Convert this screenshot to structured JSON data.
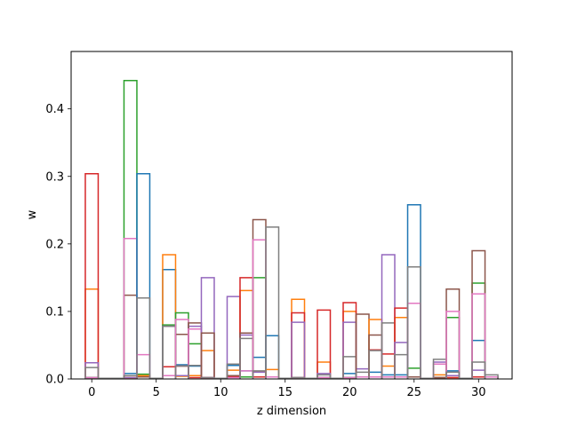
{
  "chart_data": {
    "type": "bar",
    "style": "step-histogram",
    "xlabel": "z dimension",
    "ylabel": "w",
    "xlim": [
      -1.6,
      32.6
    ],
    "ylim": [
      0,
      0.485
    ],
    "xticks": [
      0,
      5,
      10,
      15,
      20,
      25,
      30
    ],
    "yticks": [
      0.0,
      0.1,
      0.2,
      0.3,
      0.4
    ],
    "ytick_labels": [
      "0.0",
      "0.1",
      "0.2",
      "0.3",
      "0.4"
    ],
    "grid": false,
    "colors": [
      "#1f77b4",
      "#ff7f0e",
      "#2ca02c",
      "#d62728",
      "#9467bd",
      "#8c564b",
      "#e377c2",
      "#7f7f7f"
    ],
    "bins": [
      {
        "x": 0,
        "values": [
          0.002,
          0.133,
          0.002,
          0.304,
          0.024,
          0.002,
          0.002,
          0.017
        ]
      },
      {
        "x": 1,
        "values": [
          0.001,
          0.001,
          0.001,
          0.001,
          0.001,
          0.001,
          0.001,
          0.001
        ]
      },
      {
        "x": 2,
        "values": [
          0.001,
          0.001,
          0.001,
          0.001,
          0.001,
          0.001,
          0.001,
          0.001
        ]
      },
      {
        "x": 3,
        "values": [
          0.008,
          0.002,
          0.442,
          0.002,
          0.002,
          0.124,
          0.208,
          0.005
        ]
      },
      {
        "x": 4,
        "values": [
          0.304,
          0.005,
          0.007,
          0.003,
          0.003,
          0.003,
          0.036,
          0.12
        ]
      },
      {
        "x": 5,
        "values": [
          0.001,
          0.001,
          0.001,
          0.001,
          0.001,
          0.001,
          0.001,
          0.001
        ]
      },
      {
        "x": 6,
        "values": [
          0.162,
          0.184,
          0.08,
          0.018,
          0.078,
          0.005,
          0.005,
          0.078
        ]
      },
      {
        "x": 7,
        "values": [
          0.021,
          0.004,
          0.098,
          0.019,
          0.005,
          0.066,
          0.088,
          0.019
        ]
      },
      {
        "x": 8,
        "values": [
          0.019,
          0.005,
          0.052,
          0.002,
          0.078,
          0.083,
          0.074,
          0.02
        ]
      },
      {
        "x": 9,
        "values": [
          0.002,
          0.042,
          0.002,
          0.002,
          0.15,
          0.068,
          0.002,
          0.002
        ]
      },
      {
        "x": 10,
        "values": [
          0.001,
          0.001,
          0.001,
          0.001,
          0.001,
          0.001,
          0.001,
          0.001
        ]
      },
      {
        "x": 11,
        "values": [
          0.02,
          0.013,
          0.003,
          0.003,
          0.122,
          0.005,
          0.002,
          0.022
        ]
      },
      {
        "x": 12,
        "values": [
          0.012,
          0.131,
          0.003,
          0.15,
          0.065,
          0.068,
          0.012,
          0.06
        ]
      },
      {
        "x": 13,
        "values": [
          0.032,
          0.011,
          0.15,
          0.003,
          0.01,
          0.236,
          0.206,
          0.012
        ]
      },
      {
        "x": 14,
        "values": [
          0.064,
          0.014,
          0.003,
          0.003,
          0.003,
          0.003,
          0.003,
          0.225
        ]
      },
      {
        "x": 15,
        "values": [
          0.001,
          0.001,
          0.001,
          0.001,
          0.001,
          0.001,
          0.001,
          0.001
        ]
      },
      {
        "x": 16,
        "values": [
          0.002,
          0.118,
          0.002,
          0.098,
          0.084,
          0.002,
          0.002,
          0.002
        ]
      },
      {
        "x": 17,
        "values": [
          0.001,
          0.001,
          0.001,
          0.001,
          0.001,
          0.001,
          0.001,
          0.001
        ]
      },
      {
        "x": 18,
        "values": [
          0.002,
          0.025,
          0.002,
          0.102,
          0.008,
          0.002,
          0.002,
          0.006
        ]
      },
      {
        "x": 19,
        "values": [
          0.001,
          0.001,
          0.001,
          0.001,
          0.001,
          0.001,
          0.001,
          0.001
        ]
      },
      {
        "x": 20,
        "values": [
          0.008,
          0.1,
          0.002,
          0.113,
          0.084,
          0.002,
          0.002,
          0.033
        ]
      },
      {
        "x": 21,
        "values": [
          0.003,
          0.003,
          0.003,
          0.003,
          0.015,
          0.096,
          0.003,
          0.01
        ]
      },
      {
        "x": 22,
        "values": [
          0.01,
          0.088,
          0.003,
          0.043,
          0.003,
          0.065,
          0.003,
          0.042
        ]
      },
      {
        "x": 23,
        "values": [
          0.006,
          0.019,
          0.003,
          0.037,
          0.184,
          0.003,
          0.003,
          0.083
        ]
      },
      {
        "x": 24,
        "values": [
          0.006,
          0.091,
          0.003,
          0.105,
          0.054,
          0.003,
          0.003,
          0.036
        ]
      },
      {
        "x": 25,
        "values": [
          0.258,
          0.003,
          0.016,
          0.003,
          0.003,
          0.003,
          0.112,
          0.166
        ]
      },
      {
        "x": 26,
        "values": [
          0.001,
          0.001,
          0.001,
          0.001,
          0.001,
          0.001,
          0.001,
          0.001
        ]
      },
      {
        "x": 27,
        "values": [
          0.002,
          0.006,
          0.002,
          0.002,
          0.025,
          0.002,
          0.022,
          0.029
        ]
      },
      {
        "x": 28,
        "values": [
          0.012,
          0.002,
          0.091,
          0.002,
          0.005,
          0.133,
          0.1,
          0.01
        ]
      },
      {
        "x": 29,
        "values": [
          0.001,
          0.001,
          0.001,
          0.001,
          0.001,
          0.001,
          0.001,
          0.001
        ]
      },
      {
        "x": 30,
        "values": [
          0.057,
          0.003,
          0.142,
          0.003,
          0.013,
          0.19,
          0.126,
          0.025
        ]
      },
      {
        "x": 31,
        "values": [
          0.003,
          0.003,
          0.003,
          0.003,
          0.003,
          0.003,
          0.003,
          0.006
        ]
      }
    ]
  }
}
